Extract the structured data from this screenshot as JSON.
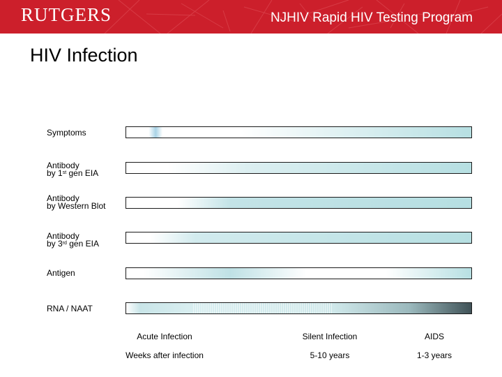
{
  "header": {
    "logo_text": "RUTGERS",
    "program_title": "NJHIV Rapid HIV Testing Program",
    "banner_color": "#cc1f2b"
  },
  "page_title": "HIV Infection",
  "rows": [
    {
      "id": "symptoms",
      "label_line1": "Symptoms"
    },
    {
      "id": "antibody-1st-gen",
      "label_line1": "Antibody",
      "label_line2_pre": "by 1",
      "label_line2_sup": "st",
      "label_line2_post": " gen EIA"
    },
    {
      "id": "antibody-western-blot",
      "label_line1": "Antibody",
      "label_line2": "by Western Blot"
    },
    {
      "id": "antibody-3rd-gen",
      "label_line1": "Antibody",
      "label_line2_pre": "by 3",
      "label_line2_sup": "rd",
      "label_line2_post": " gen EIA"
    },
    {
      "id": "antigen",
      "label_line1": "Antigen"
    },
    {
      "id": "rna-naat",
      "label_line1": "RNA / NAAT"
    }
  ],
  "phases": [
    {
      "name": "Acute Infection",
      "duration": "Weeks after infection"
    },
    {
      "name": "Silent Infection",
      "duration": "5-10 years"
    },
    {
      "name": "AIDS",
      "duration": "1-3 years"
    }
  ],
  "colors": {
    "bar_fill": "#bfe1e4",
    "bar_dark_end": "#3e5055"
  }
}
